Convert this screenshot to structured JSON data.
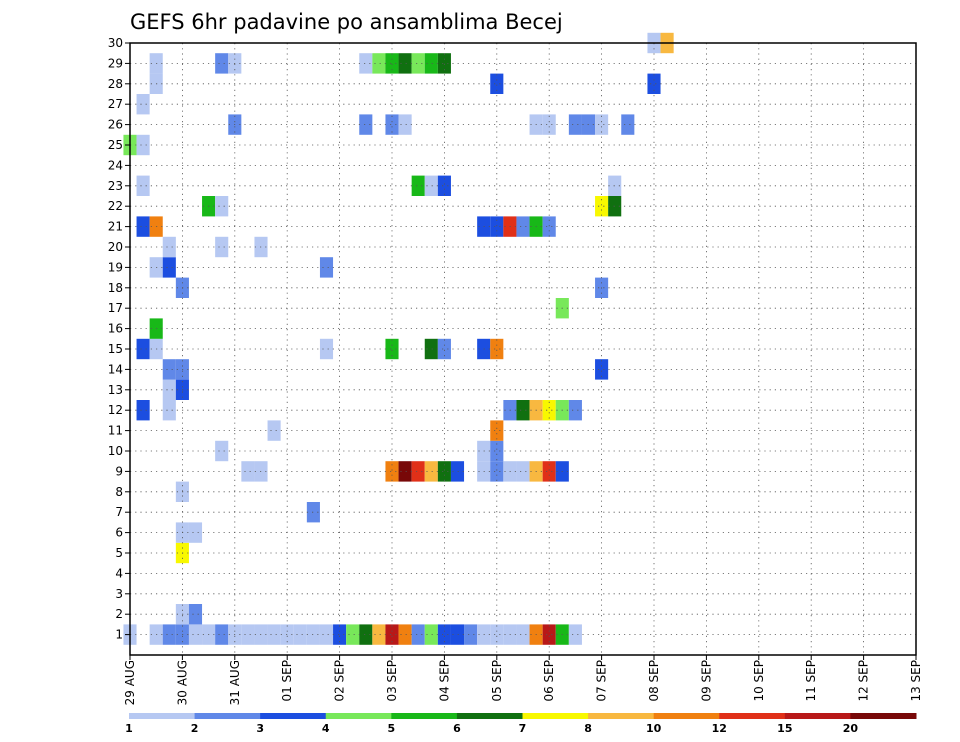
{
  "chart_data": {
    "type": "heatmap",
    "title": "GEFS 6hr padavine po ansamblima Becej",
    "xlabel": "",
    "ylabel": "",
    "x_ticks": [
      "29 AUG",
      "30 AUG",
      "31 AUG",
      "01 SEP",
      "02 SEP",
      "03 SEP",
      "04 SEP",
      "05 SEP",
      "06 SEP",
      "07 SEP",
      "08 SEP",
      "09 SEP",
      "10 SEP",
      "11 SEP",
      "12 SEP",
      "13 SEP"
    ],
    "y_ticks": [
      "1",
      "2",
      "3",
      "4",
      "5",
      "6",
      "7",
      "8",
      "9",
      "10",
      "11",
      "12",
      "13",
      "14",
      "15",
      "16",
      "17",
      "18",
      "19",
      "20",
      "21",
      "22",
      "23",
      "24",
      "25",
      "26",
      "27",
      "28",
      "29",
      "30"
    ],
    "xlim_days": [
      0,
      15
    ],
    "ylim": [
      0,
      30
    ],
    "grid": true,
    "colorbar": {
      "levels": [
        "1",
        "2",
        "3",
        "4",
        "5",
        "6",
        "7",
        "8",
        "10",
        "12",
        "15",
        "20"
      ],
      "colors": [
        "#b6c8f2",
        "#6088e8",
        "#1c4ee0",
        "#78e85a",
        "#18b818",
        "#107010",
        "#f8f800",
        "#f8b840",
        "#f08010",
        "#e03018",
        "#b81818",
        "#780808"
      ]
    },
    "cells": [
      [
        1,
        0,
        1
      ],
      [
        1,
        2,
        1
      ],
      [
        1,
        3,
        2
      ],
      [
        1,
        4,
        2
      ],
      [
        1,
        5,
        1
      ],
      [
        1,
        6,
        1
      ],
      [
        1,
        7,
        2
      ],
      [
        1,
        8,
        1
      ],
      [
        1,
        9,
        1
      ],
      [
        1,
        10,
        1
      ],
      [
        1,
        11,
        1
      ],
      [
        1,
        12,
        1
      ],
      [
        1,
        13,
        1
      ],
      [
        1,
        14,
        1
      ],
      [
        1,
        15,
        1
      ],
      [
        1,
        16,
        3
      ],
      [
        1,
        17,
        4
      ],
      [
        1,
        18,
        6
      ],
      [
        1,
        19,
        8
      ],
      [
        1,
        20,
        11
      ],
      [
        1,
        21,
        9
      ],
      [
        1,
        22,
        2
      ],
      [
        1,
        23,
        4
      ],
      [
        1,
        24,
        3
      ],
      [
        1,
        25,
        3
      ],
      [
        1,
        26,
        2
      ],
      [
        1,
        27,
        1
      ],
      [
        1,
        28,
        1
      ],
      [
        1,
        29,
        1
      ],
      [
        1,
        30,
        1
      ],
      [
        1,
        31,
        9
      ],
      [
        1,
        32,
        11
      ],
      [
        1,
        33,
        5
      ],
      [
        1,
        34,
        1
      ],
      [
        2,
        4,
        1
      ],
      [
        2,
        5,
        2
      ],
      [
        5,
        4,
        7
      ],
      [
        6,
        4,
        1
      ],
      [
        6,
        5,
        1
      ],
      [
        7,
        14,
        2
      ],
      [
        8,
        4,
        1
      ],
      [
        9,
        10,
        1
      ],
      [
        9,
        9,
        1
      ],
      [
        9,
        20,
        9
      ],
      [
        9,
        21,
        12
      ],
      [
        9,
        22,
        10
      ],
      [
        9,
        23,
        8
      ],
      [
        9,
        24,
        6
      ],
      [
        9,
        25,
        3
      ],
      [
        9,
        27,
        1
      ],
      [
        9,
        28,
        2
      ],
      [
        9,
        29,
        1
      ],
      [
        9,
        30,
        1
      ],
      [
        9,
        31,
        8
      ],
      [
        9,
        32,
        10
      ],
      [
        9,
        33,
        3
      ],
      [
        10,
        7,
        1
      ],
      [
        10,
        27,
        1
      ],
      [
        10,
        28,
        2
      ],
      [
        11,
        11,
        1
      ],
      [
        11,
        28,
        9
      ],
      [
        12,
        1,
        3
      ],
      [
        12,
        3,
        1
      ],
      [
        12,
        29,
        2
      ],
      [
        12,
        30,
        6
      ],
      [
        12,
        31,
        8
      ],
      [
        12,
        32,
        7
      ],
      [
        12,
        33,
        4
      ],
      [
        12,
        34,
        2
      ],
      [
        13,
        3,
        1
      ],
      [
        13,
        4,
        3
      ],
      [
        14,
        3,
        2
      ],
      [
        14,
        4,
        2
      ],
      [
        14,
        36,
        3
      ],
      [
        15,
        1,
        3
      ],
      [
        15,
        2,
        1
      ],
      [
        15,
        15,
        1
      ],
      [
        15,
        20,
        5
      ],
      [
        15,
        23,
        6
      ],
      [
        15,
        24,
        2
      ],
      [
        15,
        27,
        3
      ],
      [
        15,
        28,
        9
      ],
      [
        16,
        2,
        5
      ],
      [
        17,
        33,
        4
      ],
      [
        18,
        4,
        2
      ],
      [
        18,
        36,
        2
      ],
      [
        19,
        2,
        1
      ],
      [
        19,
        3,
        3
      ],
      [
        19,
        15,
        2
      ],
      [
        20,
        3,
        1
      ],
      [
        20,
        7,
        1
      ],
      [
        20,
        10,
        1
      ],
      [
        21,
        1,
        3
      ],
      [
        21,
        2,
        9
      ],
      [
        21,
        27,
        3
      ],
      [
        21,
        28,
        3
      ],
      [
        21,
        29,
        10
      ],
      [
        21,
        30,
        2
      ],
      [
        21,
        31,
        5
      ],
      [
        21,
        32,
        2
      ],
      [
        22,
        6,
        5
      ],
      [
        22,
        7,
        1
      ],
      [
        22,
        36,
        7
      ],
      [
        22,
        37,
        6
      ],
      [
        23,
        1,
        1
      ],
      [
        23,
        22,
        5
      ],
      [
        23,
        23,
        1
      ],
      [
        23,
        24,
        3
      ],
      [
        23,
        37,
        1
      ],
      [
        25,
        0,
        4
      ],
      [
        25,
        1,
        1
      ],
      [
        26,
        8,
        2
      ],
      [
        26,
        18,
        2
      ],
      [
        26,
        20,
        2
      ],
      [
        26,
        21,
        1
      ],
      [
        26,
        31,
        1
      ],
      [
        26,
        32,
        1
      ],
      [
        26,
        34,
        2
      ],
      [
        26,
        35,
        2
      ],
      [
        26,
        36,
        1
      ],
      [
        26,
        38,
        2
      ],
      [
        27,
        1,
        1
      ],
      [
        28,
        2,
        1
      ],
      [
        28,
        28,
        3
      ],
      [
        28,
        40,
        3
      ],
      [
        29,
        2,
        1
      ],
      [
        29,
        7,
        2
      ],
      [
        29,
        8,
        1
      ],
      [
        29,
        18,
        1
      ],
      [
        29,
        19,
        4
      ],
      [
        29,
        20,
        5
      ],
      [
        29,
        21,
        6
      ],
      [
        29,
        22,
        4
      ],
      [
        29,
        23,
        5
      ],
      [
        29,
        24,
        6
      ],
      [
        30,
        40,
        1
      ],
      [
        30,
        41,
        8
      ]
    ],
    "cells_format": "[member (y value), 6-hour step from 29 AUG 00Z (x = step/4 days), color class index 1-12 matching colorbar levels]"
  }
}
